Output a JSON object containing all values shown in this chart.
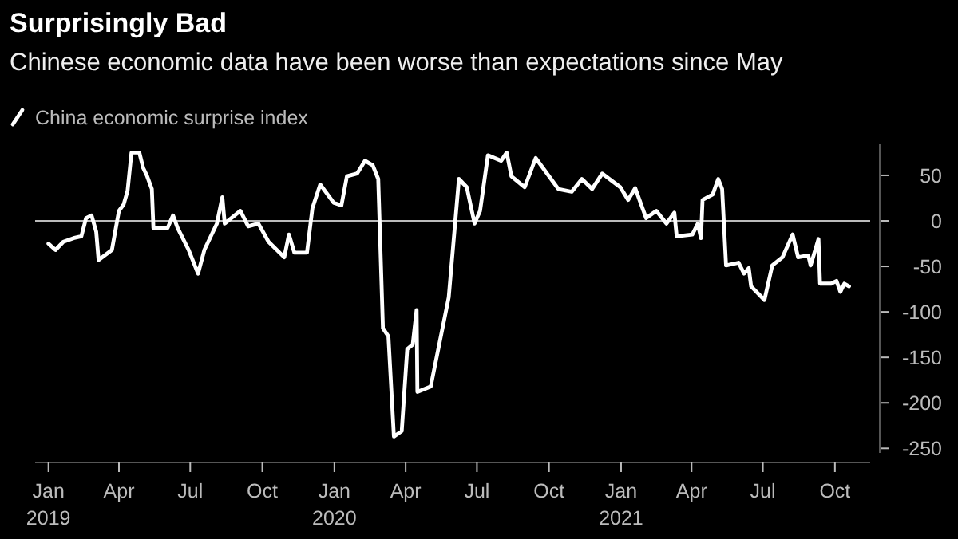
{
  "chart_data": {
    "type": "line",
    "title": "Surprisingly Bad",
    "subtitle": "Chinese economic data have been worse than expectations since May",
    "x": [
      "2019-01-01",
      "2019-01-10",
      "2019-01-20",
      "2019-02-02",
      "2019-02-12",
      "2019-02-18",
      "2019-02-25",
      "2019-03-03",
      "2019-03-06",
      "2019-03-23",
      "2019-04-01",
      "2019-04-07",
      "2019-04-12",
      "2019-04-17",
      "2019-04-27",
      "2019-05-02",
      "2019-05-07",
      "2019-05-13",
      "2019-05-15",
      "2019-06-02",
      "2019-06-09",
      "2019-06-15",
      "2019-06-29",
      "2019-07-11",
      "2019-07-19",
      "2019-08-04",
      "2019-08-11",
      "2019-08-14",
      "2019-09-03",
      "2019-09-13",
      "2019-09-26",
      "2019-10-09",
      "2019-10-29",
      "2019-11-04",
      "2019-11-11",
      "2019-11-27",
      "2019-12-04",
      "2019-12-14",
      "2019-12-31",
      "2020-01-10",
      "2020-01-17",
      "2020-01-30",
      "2020-02-09",
      "2020-02-19",
      "2020-02-26",
      "2020-03-03",
      "2020-03-10",
      "2020-03-17",
      "2020-03-27",
      "2020-04-03",
      "2020-04-10",
      "2020-04-15",
      "2020-04-16",
      "2020-05-03",
      "2020-05-26",
      "2020-06-08",
      "2020-06-18",
      "2020-06-28",
      "2020-07-05",
      "2020-07-15",
      "2020-08-01",
      "2020-08-08",
      "2020-08-14",
      "2020-08-31",
      "2020-09-14",
      "2020-10-13",
      "2020-10-30",
      "2020-11-12",
      "2020-11-25",
      "2020-12-08",
      "2020-12-31",
      "2021-01-10",
      "2021-01-19",
      "2021-02-02",
      "2021-02-15",
      "2021-02-28",
      "2021-03-10",
      "2021-03-13",
      "2021-04-02",
      "2021-04-09",
      "2021-04-13",
      "2021-04-15",
      "2021-04-28",
      "2021-05-05",
      "2021-05-10",
      "2021-05-15",
      "2021-05-31",
      "2021-06-07",
      "2021-06-13",
      "2021-06-16",
      "2021-07-03",
      "2021-07-13",
      "2021-07-26",
      "2021-08-08",
      "2021-08-15",
      "2021-08-28",
      "2021-08-31",
      "2021-09-10",
      "2021-09-12",
      "2021-09-26",
      "2021-10-03",
      "2021-10-08",
      "2021-10-13",
      "2021-10-19"
    ],
    "series": [
      {
        "name": "China economic surprise index",
        "color": "#ffffff",
        "values": [
          -25,
          -32,
          -23,
          -19,
          -17,
          3,
          6,
          -12,
          -43,
          -32,
          11,
          18,
          33,
          75,
          75,
          58,
          49,
          35,
          -8,
          -8,
          6,
          -8,
          -32,
          -58,
          -32,
          -3,
          26,
          -3,
          11,
          -6,
          -3,
          -23,
          -40,
          -15,
          -35,
          -35,
          14,
          40,
          20,
          17,
          49,
          52,
          66,
          61,
          46,
          -118,
          -127,
          -237,
          -231,
          -141,
          -136,
          -98,
          -188,
          -182,
          -84,
          46,
          37,
          -3,
          11,
          72,
          66,
          75,
          49,
          37,
          69,
          35,
          32,
          46,
          35,
          52,
          37,
          23,
          36,
          3,
          11,
          -3,
          9,
          -17,
          -15,
          -3,
          -19,
          23,
          29,
          46,
          35,
          -49,
          -46,
          -58,
          -52,
          -72,
          -87,
          -49,
          -40,
          -15,
          -40,
          -38,
          -49,
          -20,
          -69,
          -69,
          -66,
          -78,
          -69,
          -72
        ]
      }
    ],
    "xlim": [
      "2018-12-15",
      "2021-11-15"
    ],
    "xticks": [
      {
        "value": "2019-01-01",
        "label": "Jan\n2019"
      },
      {
        "value": "2019-04-01",
        "label": "Apr"
      },
      {
        "value": "2019-07-01",
        "label": "Jul"
      },
      {
        "value": "2019-10-01",
        "label": "Oct"
      },
      {
        "value": "2020-01-01",
        "label": "Jan\n2020"
      },
      {
        "value": "2020-04-01",
        "label": "Apr"
      },
      {
        "value": "2020-07-01",
        "label": "Jul"
      },
      {
        "value": "2020-10-01",
        "label": "Oct"
      },
      {
        "value": "2021-01-01",
        "label": "Jan\n2021"
      },
      {
        "value": "2021-04-01",
        "label": "Apr"
      },
      {
        "value": "2021-07-01",
        "label": "Jul"
      },
      {
        "value": "2021-10-01",
        "label": "Oct"
      }
    ],
    "ylim": [
      -255,
      85
    ],
    "yticks": [
      50,
      0,
      -50,
      -100,
      -150,
      -200,
      -250
    ],
    "ref_lines": [
      {
        "axis": "y",
        "value": 0,
        "color": "#bbbbbb"
      }
    ],
    "legend": "top left",
    "line_style": "solid",
    "marker": "none"
  }
}
